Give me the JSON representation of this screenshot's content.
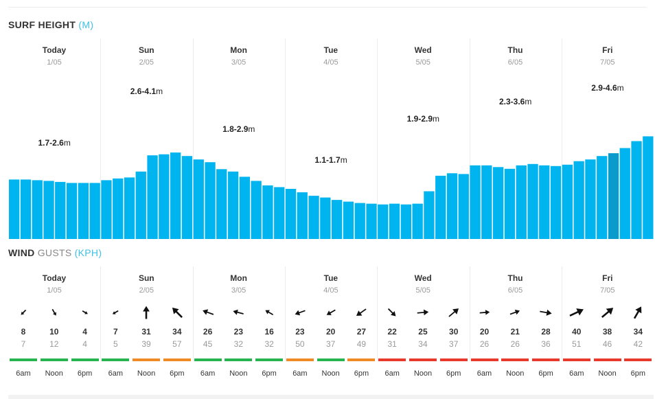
{
  "surf": {
    "title": "SURF HEIGHT",
    "unit": "(M)",
    "colors": {
      "bar": "#00b4ef",
      "highlight": "#0a9bcc"
    },
    "days": [
      {
        "name": "Today",
        "date": "1/05",
        "range": "1.7-2.6",
        "unit": "m",
        "range_level": 2.6
      },
      {
        "name": "Sun",
        "date": "2/05",
        "range": "2.6-4.1",
        "unit": "m",
        "range_level": 4.1
      },
      {
        "name": "Mon",
        "date": "3/05",
        "range": "1.8-2.9",
        "unit": "m",
        "range_level": 3.0
      },
      {
        "name": "Tue",
        "date": "4/05",
        "range": "1.1-1.7",
        "unit": "m",
        "range_level": 2.1
      },
      {
        "name": "Wed",
        "date": "5/05",
        "range": "1.9-2.9",
        "unit": "m",
        "range_level": 3.3
      },
      {
        "name": "Thu",
        "date": "6/05",
        "range": "2.3-3.6",
        "unit": "m",
        "range_level": 3.8
      },
      {
        "name": "Fri",
        "date": "7/05",
        "range": "2.9-4.6",
        "unit": "m",
        "range_level": 4.2
      }
    ],
    "chart_data": {
      "type": "bar",
      "ylabel": "",
      "ylim": [
        0,
        5.8
      ],
      "highlight_index": 52,
      "values": [
        1.72,
        1.72,
        1.7,
        1.68,
        1.65,
        1.62,
        1.62,
        1.62,
        1.7,
        1.75,
        1.78,
        1.95,
        2.42,
        2.45,
        2.5,
        2.4,
        2.3,
        2.22,
        2.02,
        1.95,
        1.8,
        1.68,
        1.55,
        1.5,
        1.45,
        1.35,
        1.25,
        1.2,
        1.13,
        1.08,
        1.04,
        1.02,
        1.0,
        1.02,
        1.0,
        1.02,
        1.38,
        1.83,
        1.9,
        1.88,
        2.13,
        2.13,
        2.08,
        2.03,
        2.13,
        2.17,
        2.13,
        2.11,
        2.15,
        2.25,
        2.3,
        2.4,
        2.48,
        2.63,
        2.83,
        2.97
      ]
    }
  },
  "wind": {
    "title": "WIND",
    "subtitle": "GUSTS",
    "unit": "(KPH)",
    "colors": {
      "green": "#27b34f",
      "orange": "#f08a24",
      "red": "#e8392c",
      "arrow": "#111111"
    },
    "days": [
      {
        "name": "Today",
        "date": "1/05"
      },
      {
        "name": "Sun",
        "date": "2/05"
      },
      {
        "name": "Mon",
        "date": "3/05"
      },
      {
        "name": "Tue",
        "date": "4/05"
      },
      {
        "name": "Wed",
        "date": "5/05"
      },
      {
        "name": "Thu",
        "date": "6/05"
      },
      {
        "name": "Fri",
        "date": "7/05"
      }
    ],
    "entries": [
      {
        "time": "6am",
        "speed": "8",
        "gust": "7",
        "dir": 225,
        "rating": "green"
      },
      {
        "time": "Noon",
        "speed": "10",
        "gust": "12",
        "dir": 150,
        "rating": "green"
      },
      {
        "time": "6pm",
        "speed": "4",
        "gust": "4",
        "dir": 120,
        "rating": "green"
      },
      {
        "time": "6am",
        "speed": "7",
        "gust": "5",
        "dir": 240,
        "rating": "green"
      },
      {
        "time": "Noon",
        "speed": "31",
        "gust": "39",
        "dir": 0,
        "rating": "orange"
      },
      {
        "time": "6pm",
        "speed": "34",
        "gust": "57",
        "dir": 315,
        "rating": "orange"
      },
      {
        "time": "6am",
        "speed": "26",
        "gust": "45",
        "dir": 290,
        "rating": "green"
      },
      {
        "time": "Noon",
        "speed": "23",
        "gust": "32",
        "dir": 285,
        "rating": "green"
      },
      {
        "time": "6pm",
        "speed": "16",
        "gust": "32",
        "dir": 300,
        "rating": "green"
      },
      {
        "time": "6am",
        "speed": "23",
        "gust": "50",
        "dir": 250,
        "rating": "orange"
      },
      {
        "time": "Noon",
        "speed": "20",
        "gust": "37",
        "dir": 240,
        "rating": "green"
      },
      {
        "time": "6pm",
        "speed": "27",
        "gust": "49",
        "dir": 235,
        "rating": "orange"
      },
      {
        "time": "6am",
        "speed": "22",
        "gust": "31",
        "dir": 135,
        "rating": "red"
      },
      {
        "time": "Noon",
        "speed": "25",
        "gust": "34",
        "dir": 85,
        "rating": "red"
      },
      {
        "time": "6pm",
        "speed": "30",
        "gust": "37",
        "dir": 50,
        "rating": "red"
      },
      {
        "time": "6am",
        "speed": "20",
        "gust": "26",
        "dir": 85,
        "rating": "red"
      },
      {
        "time": "Noon",
        "speed": "21",
        "gust": "26",
        "dir": 70,
        "rating": "red"
      },
      {
        "time": "6pm",
        "speed": "28",
        "gust": "36",
        "dir": 100,
        "rating": "red"
      },
      {
        "time": "6am",
        "speed": "40",
        "gust": "51",
        "dir": 65,
        "rating": "red"
      },
      {
        "time": "Noon",
        "speed": "38",
        "gust": "46",
        "dir": 50,
        "rating": "red"
      },
      {
        "time": "6pm",
        "speed": "34",
        "gust": "42",
        "dir": 30,
        "rating": "red"
      }
    ]
  }
}
